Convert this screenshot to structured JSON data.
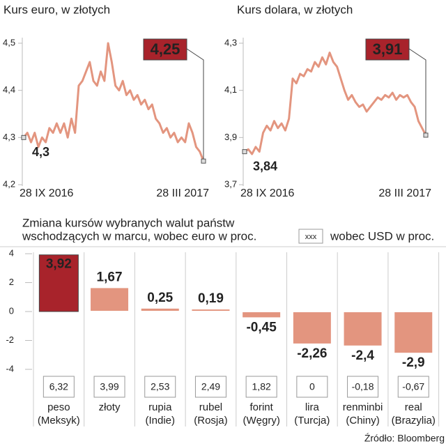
{
  "chart_data": [
    {
      "type": "line",
      "title": "Kurs euro, w złotych",
      "categories": [
        "28 IX 2016",
        null,
        null,
        null,
        null,
        null,
        null,
        null,
        null,
        null,
        null,
        null,
        null,
        null,
        null,
        null,
        null,
        null,
        null,
        null,
        null,
        null,
        null,
        null,
        null,
        null,
        null,
        null,
        null,
        null,
        null,
        null,
        null,
        null,
        null,
        null,
        null,
        null,
        null,
        null,
        null,
        null,
        null,
        null,
        null,
        null,
        null,
        null,
        null,
        "28 III 2017"
      ],
      "series": [
        {
          "color": "#e3957f",
          "values": [
            4.3,
            4.31,
            4.29,
            4.31,
            4.28,
            4.3,
            4.29,
            4.32,
            4.31,
            4.33,
            4.31,
            4.33,
            4.3,
            4.34,
            4.31,
            4.41,
            4.42,
            4.44,
            4.46,
            4.42,
            4.41,
            4.44,
            4.42,
            4.5,
            4.46,
            4.41,
            4.4,
            4.42,
            4.39,
            4.4,
            4.38,
            4.39,
            4.37,
            4.38,
            4.36,
            4.37,
            4.34,
            4.33,
            4.31,
            4.32,
            4.3,
            4.31,
            4.29,
            4.3,
            4.29,
            4.33,
            4.31,
            4.28,
            4.27,
            4.25
          ],
          "value_labels": [
            "4,3",
            null,
            null,
            null,
            null,
            null,
            null,
            null,
            null,
            null,
            null,
            null,
            null,
            null,
            null,
            null,
            null,
            null,
            null,
            null,
            null,
            null,
            null,
            null,
            null,
            null,
            null,
            null,
            null,
            null,
            null,
            null,
            null,
            null,
            null,
            null,
            null,
            null,
            null,
            null,
            null,
            null,
            null,
            null,
            null,
            null,
            null,
            null,
            null,
            "4,25"
          ]
        }
      ],
      "ylim": [
        4.2,
        4.5
      ],
      "yticks": [
        {
          "value": 4.2,
          "label": "4,2"
        },
        {
          "value": 4.3,
          "label": "4,3"
        },
        {
          "value": 4.4,
          "label": "4,4"
        },
        {
          "value": 4.5,
          "label": "4,5"
        }
      ],
      "highlight_color": "#a8232b"
    },
    {
      "type": "line",
      "title": "Kurs dolara, w złotych",
      "categories": [
        "28 IX 2016",
        null,
        null,
        null,
        null,
        null,
        null,
        null,
        null,
        null,
        null,
        null,
        null,
        null,
        null,
        null,
        null,
        null,
        null,
        null,
        null,
        null,
        null,
        null,
        null,
        null,
        null,
        null,
        null,
        null,
        null,
        null,
        null,
        null,
        null,
        null,
        null,
        null,
        null,
        null,
        null,
        null,
        null,
        null,
        null,
        null,
        null,
        null,
        null,
        "28 III 2017"
      ],
      "series": [
        {
          "color": "#e3957f",
          "values": [
            3.84,
            3.85,
            3.83,
            3.86,
            3.84,
            3.92,
            3.95,
            3.93,
            3.97,
            3.94,
            3.96,
            3.93,
            3.98,
            4.15,
            4.13,
            4.17,
            4.16,
            4.19,
            4.18,
            4.22,
            4.2,
            4.24,
            4.21,
            4.26,
            4.22,
            4.2,
            4.15,
            4.1,
            4.06,
            4.08,
            4.05,
            4.03,
            4.04,
            4.01,
            4.03,
            4.05,
            4.07,
            4.06,
            4.08,
            4.07,
            4.09,
            4.06,
            4.08,
            4.07,
            4.08,
            4.05,
            4.03,
            3.97,
            3.94,
            3.91
          ],
          "value_labels": [
            "3,84",
            null,
            null,
            null,
            null,
            null,
            null,
            null,
            null,
            null,
            null,
            null,
            null,
            null,
            null,
            null,
            null,
            null,
            null,
            null,
            null,
            null,
            null,
            null,
            null,
            null,
            null,
            null,
            null,
            null,
            null,
            null,
            null,
            null,
            null,
            null,
            null,
            null,
            null,
            null,
            null,
            null,
            null,
            null,
            null,
            null,
            null,
            null,
            null,
            "3,91"
          ]
        }
      ],
      "ylim": [
        3.7,
        4.3
      ],
      "yticks": [
        {
          "value": 3.7,
          "label": "3,7"
        },
        {
          "value": 3.9,
          "label": "3,9"
        },
        {
          "value": 4.1,
          "label": "4,1"
        },
        {
          "value": 4.3,
          "label": "4,3"
        }
      ],
      "highlight_color": "#a8232b"
    },
    {
      "type": "bar",
      "title": [
        "Zmiana kursów wybranych walut państw",
        "wschodzących w marcu, wobec euro w proc."
      ],
      "categories": [
        "peso",
        "złoty",
        "rupia",
        "rubel",
        "forint",
        "lira",
        "renminbi",
        "real"
      ],
      "category_notes": [
        "(Meksyk)",
        "",
        "(Indie)",
        "(Rosja)",
        "(Węgry)",
        "(Turcja)",
        "(Chiny)",
        "(Brazylia)"
      ],
      "series": [
        {
          "name": "wobec euro w proc.",
          "color": "#e3957f",
          "values": [
            3.92,
            1.67,
            0.25,
            0.19,
            -0.45,
            -2.26,
            -2.4,
            -2.9
          ],
          "value_labels": [
            "3,92",
            "1,67",
            "0,25",
            "0,19",
            "-0,45",
            "-2,26",
            "-2,4",
            "-2,9"
          ]
        },
        {
          "name": "wobec USD w proc.",
          "legend_sample": "xxx",
          "values": [
            6.32,
            3.99,
            2.53,
            2.49,
            1.82,
            0,
            -0.18,
            -0.67
          ],
          "value_labels": [
            "6,32",
            "3,99",
            "2,53",
            "2,49",
            "1,82",
            "0",
            "-0,18",
            "-0,67"
          ]
        }
      ],
      "highlight_index": 0,
      "highlight_color": "#a8232b",
      "ylim": [
        -4,
        4.1
      ],
      "yticks": [
        4,
        2,
        0,
        -2,
        -4
      ],
      "source": "Źródło: Bloomberg"
    }
  ]
}
